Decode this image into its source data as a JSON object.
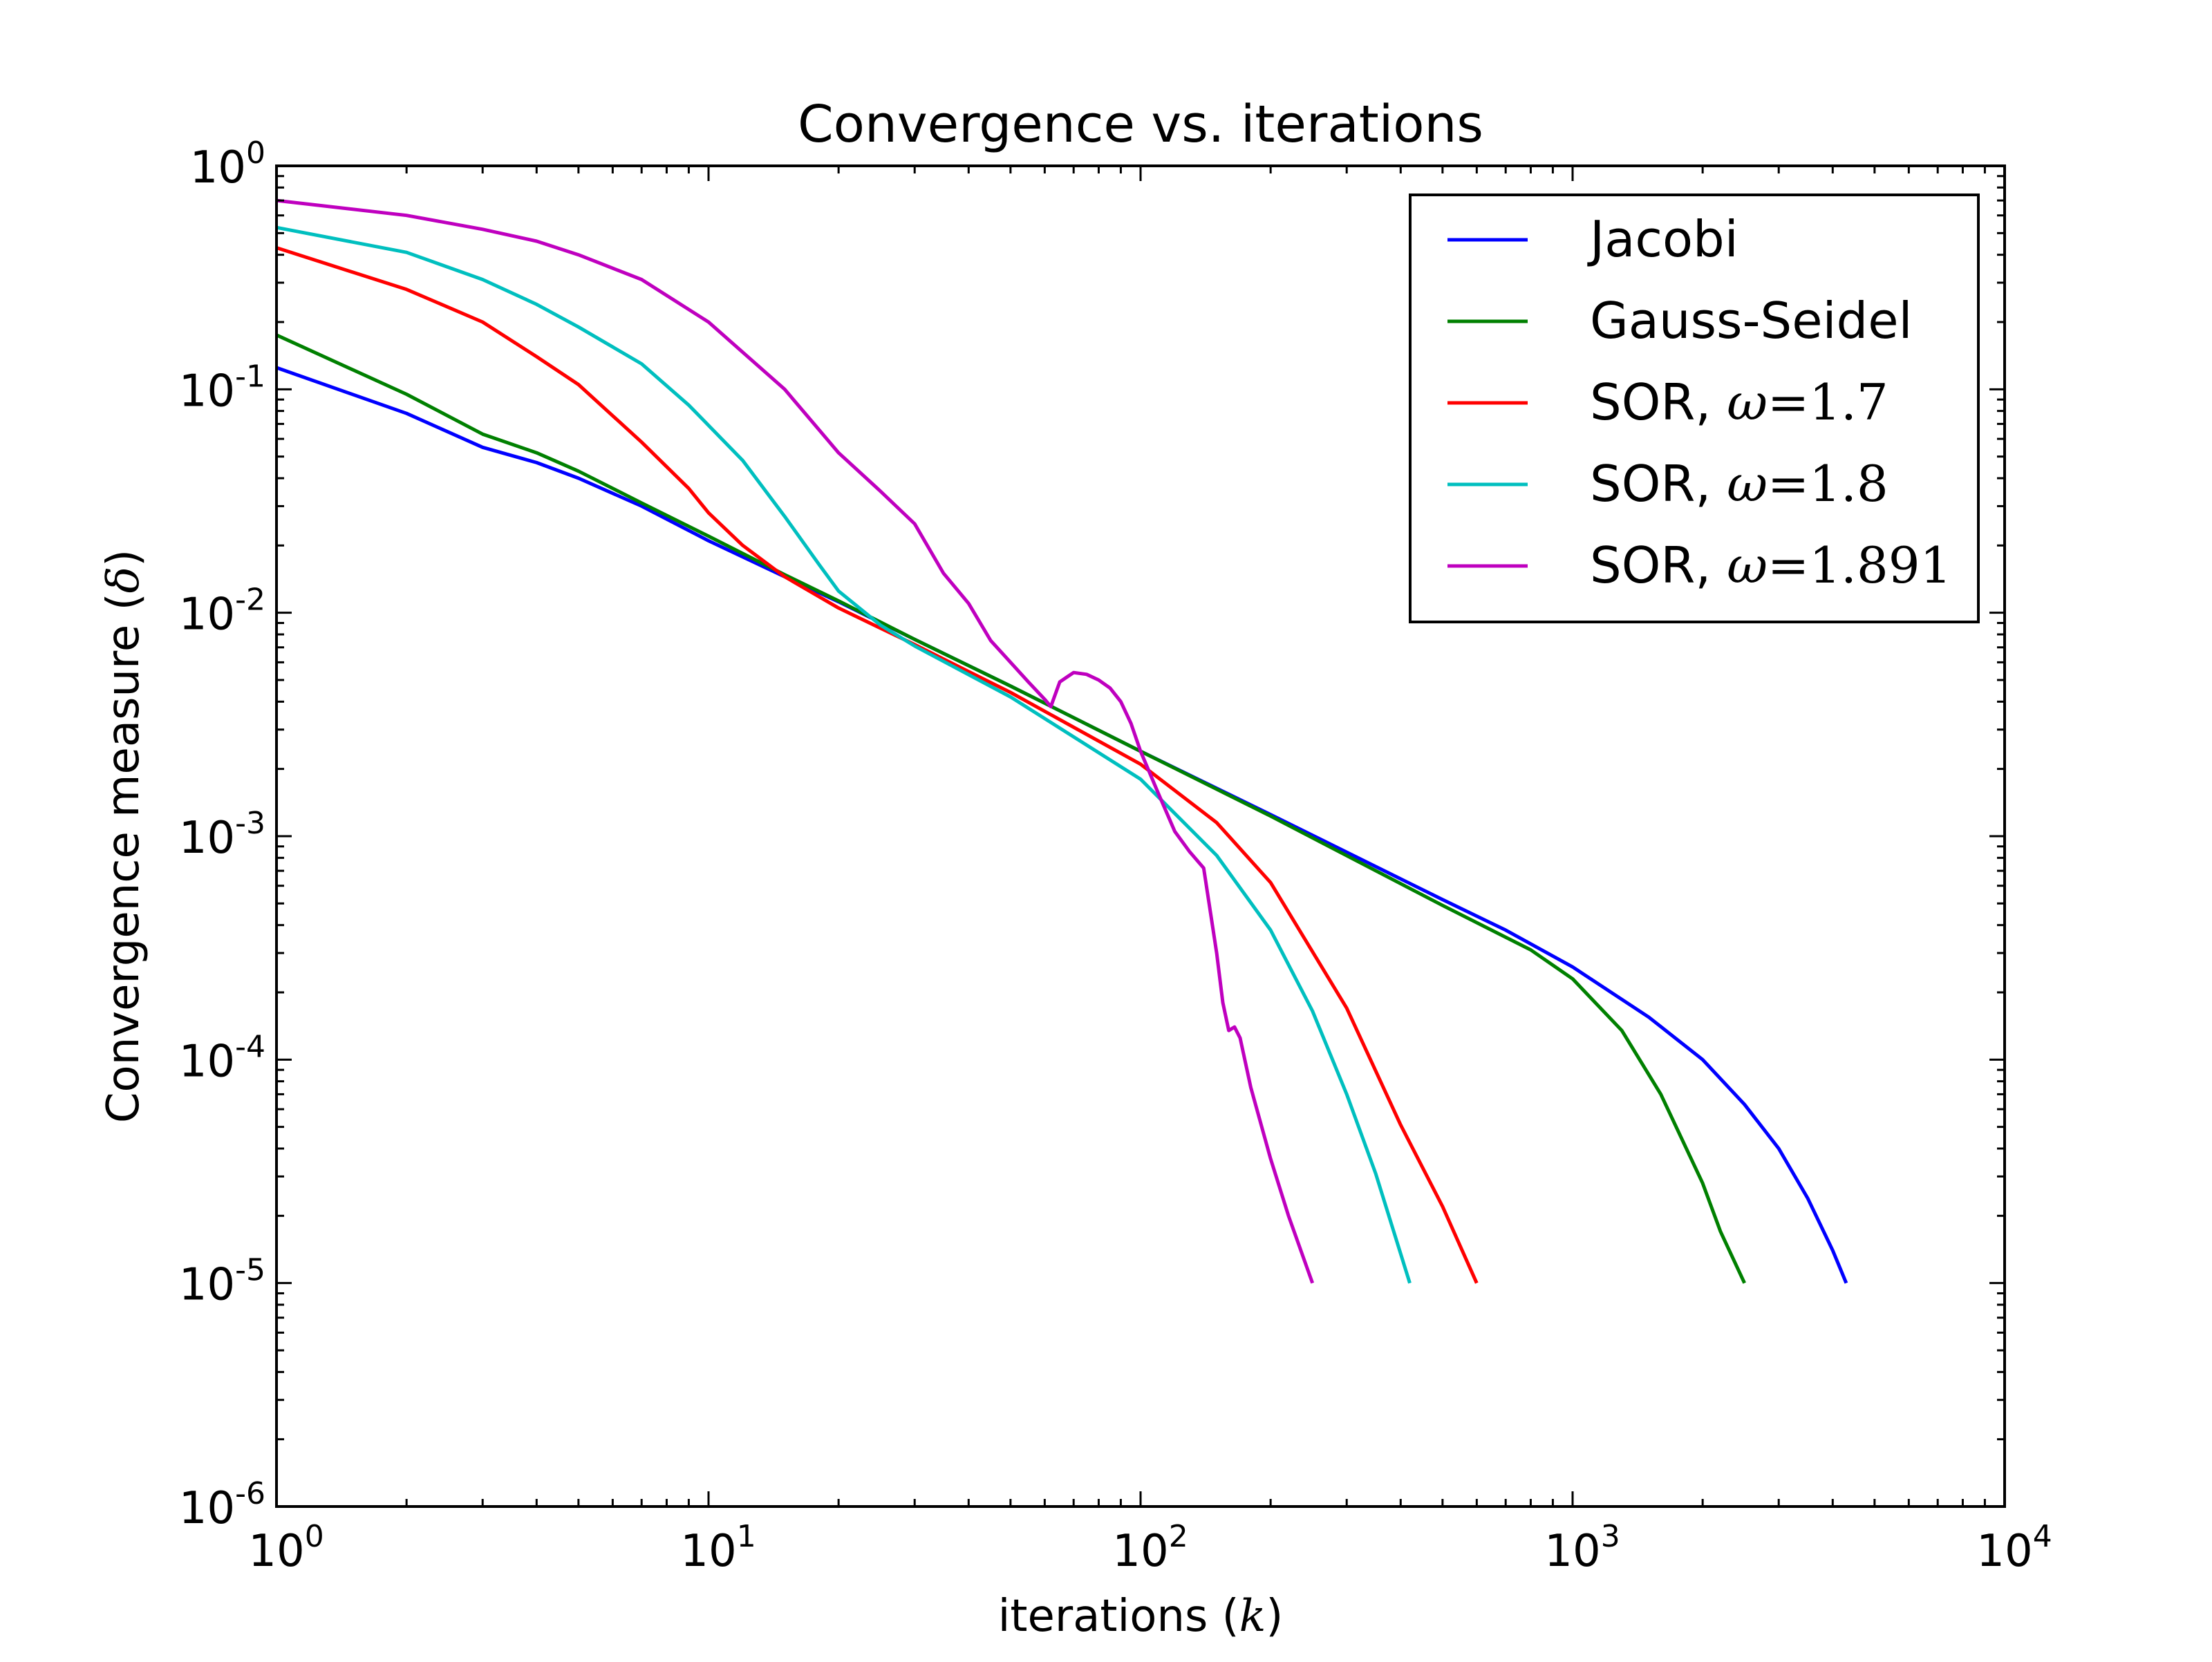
{
  "chart_data": {
    "type": "line",
    "title": "Convergence vs. iterations",
    "xlabel": {
      "text": "iterations (",
      "symbol": "k",
      "close": ")"
    },
    "ylabel": {
      "text": "Convergence measure (",
      "symbol": "δ",
      "close": ")"
    },
    "xscale": "log",
    "yscale": "log",
    "xlim": [
      1,
      10000
    ],
    "ylim": [
      1e-06,
      1
    ],
    "xticks": [
      {
        "value": 1,
        "base": "10",
        "exp": "0"
      },
      {
        "value": 10,
        "base": "10",
        "exp": "1"
      },
      {
        "value": 100,
        "base": "10",
        "exp": "2"
      },
      {
        "value": 1000,
        "base": "10",
        "exp": "3"
      },
      {
        "value": 10000,
        "base": "10",
        "exp": "4"
      }
    ],
    "yticks": [
      {
        "value": 1,
        "base": "10",
        "exp": "0"
      },
      {
        "value": 0.1,
        "base": "10",
        "exp": "-1"
      },
      {
        "value": 0.01,
        "base": "10",
        "exp": "-2"
      },
      {
        "value": 0.001,
        "base": "10",
        "exp": "-3"
      },
      {
        "value": 0.0001,
        "base": "10",
        "exp": "-4"
      },
      {
        "value": 1e-05,
        "base": "10",
        "exp": "-5"
      },
      {
        "value": 1e-06,
        "base": "10",
        "exp": "-6"
      }
    ],
    "grid": false,
    "legend_position": "top-right",
    "series": [
      {
        "name": "Jacobi",
        "label": "Jacobi",
        "omega": "",
        "color": "#0000ff",
        "x": [
          1,
          2,
          3,
          4,
          5,
          7,
          10,
          15,
          20,
          30,
          50,
          100,
          200,
          500,
          700,
          1000,
          1500,
          2000,
          2500,
          3000,
          3500,
          4000,
          4300
        ],
        "y": [
          0.125,
          0.078,
          0.055,
          0.047,
          0.04,
          0.03,
          0.021,
          0.0145,
          0.0112,
          0.0076,
          0.0047,
          0.0024,
          0.00125,
          0.00052,
          0.00038,
          0.00026,
          0.000155,
          0.0001,
          6.3e-05,
          4e-05,
          2.4e-05,
          1.4e-05,
          1e-05
        ]
      },
      {
        "name": "Gauss-Seidel",
        "label": "Gauss-Seidel",
        "omega": "",
        "color": "#008000",
        "x": [
          1,
          2,
          3,
          4,
          5,
          7,
          10,
          15,
          20,
          30,
          50,
          100,
          200,
          500,
          800,
          1000,
          1300,
          1600,
          2000,
          2200,
          2500
        ],
        "y": [
          0.175,
          0.095,
          0.063,
          0.052,
          0.043,
          0.031,
          0.022,
          0.0148,
          0.0113,
          0.0076,
          0.0047,
          0.0024,
          0.00123,
          0.00049,
          0.00031,
          0.00023,
          0.000135,
          7e-05,
          2.8e-05,
          1.7e-05,
          1e-05
        ]
      },
      {
        "name": "SOR, ω=1.7",
        "label": "SOR, ",
        "omega": "ω=1.7",
        "color": "#ff0000",
        "x": [
          1,
          2,
          3,
          4,
          5,
          7,
          9,
          10,
          12,
          15,
          20,
          30,
          50,
          100,
          150,
          200,
          300,
          400,
          500,
          600
        ],
        "y": [
          0.43,
          0.28,
          0.2,
          0.14,
          0.105,
          0.058,
          0.036,
          0.028,
          0.02,
          0.0145,
          0.0105,
          0.0072,
          0.0044,
          0.0021,
          0.00115,
          0.00062,
          0.00017,
          5.1e-05,
          2.2e-05,
          1e-05
        ]
      },
      {
        "name": "SOR, ω=1.8",
        "label": "SOR, ",
        "omega": "ω=1.8",
        "color": "#00bfbf",
        "x": [
          1,
          2,
          3,
          4,
          5,
          7,
          9,
          12,
          15,
          18,
          20,
          25,
          30,
          50,
          100,
          150,
          200,
          250,
          300,
          350,
          420
        ],
        "y": [
          0.53,
          0.41,
          0.31,
          0.24,
          0.19,
          0.13,
          0.085,
          0.048,
          0.027,
          0.0165,
          0.0125,
          0.0088,
          0.0071,
          0.0042,
          0.0018,
          0.00082,
          0.00038,
          0.000165,
          7e-05,
          3.1e-05,
          1e-05
        ]
      },
      {
        "name": "SOR, ω=1.891",
        "label": "SOR, ",
        "omega": "ω=1.891",
        "color": "#bf00bf",
        "x": [
          1,
          2,
          3,
          4,
          5,
          7,
          10,
          15,
          20,
          25,
          30,
          35,
          40,
          45,
          50,
          55,
          60,
          62,
          65,
          68,
          70,
          75,
          80,
          85,
          90,
          95,
          100,
          110,
          120,
          130,
          140,
          150,
          155,
          160,
          165,
          170,
          180,
          200,
          220,
          250
        ],
        "y": [
          0.7,
          0.6,
          0.52,
          0.46,
          0.4,
          0.31,
          0.2,
          0.1,
          0.052,
          0.035,
          0.025,
          0.015,
          0.011,
          0.0075,
          0.006,
          0.0049,
          0.0041,
          0.0038,
          0.0049,
          0.0052,
          0.0054,
          0.0053,
          0.005,
          0.0046,
          0.004,
          0.0032,
          0.0024,
          0.00155,
          0.00105,
          0.00085,
          0.00072,
          0.0003,
          0.00018,
          0.000135,
          0.00014,
          0.000125,
          7.5e-05,
          3.6e-05,
          2e-05,
          1e-05
        ]
      }
    ]
  }
}
